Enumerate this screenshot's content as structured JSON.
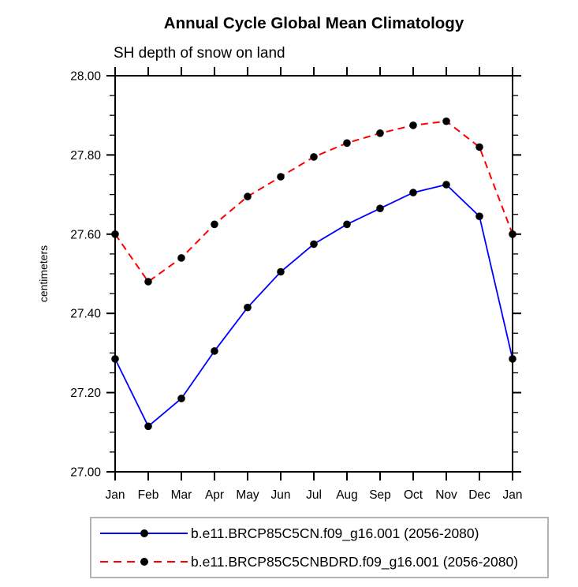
{
  "chart_data": {
    "type": "line",
    "title": "Annual Cycle Global Mean Climatology",
    "subtitle": "SH depth of snow on land",
    "ylabel": "centimeters",
    "xlabel": "",
    "categories": [
      "Jan",
      "Feb",
      "Mar",
      "Apr",
      "May",
      "Jun",
      "Jul",
      "Aug",
      "Sep",
      "Oct",
      "Nov",
      "Dec",
      "Jan"
    ],
    "ylim": [
      27.0,
      28.0
    ],
    "ytick_interval": 0.2,
    "yminor_interval": 0.05,
    "ytick_labels": [
      "27.00",
      "27.20",
      "27.40",
      "27.60",
      "27.80",
      "28.00"
    ],
    "grid": false,
    "legend_position": "bottom",
    "axis_color": "#000000",
    "series": [
      {
        "name": "b.e11.BRCP85C5CN.f09_g16.001 (2056-2080)",
        "color": "#0000ff",
        "style": "solid",
        "marker": "circle",
        "marker_color": "#000000",
        "values": [
          27.285,
          27.115,
          27.185,
          27.305,
          27.415,
          27.505,
          27.575,
          27.625,
          27.665,
          27.705,
          27.725,
          27.645,
          27.285
        ]
      },
      {
        "name": "b.e11.BRCP85C5CNBDRD.f09_g16.001 (2056-2080)",
        "color": "#ff0000",
        "style": "dashed",
        "marker": "circle",
        "marker_color": "#000000",
        "values": [
          27.6,
          27.48,
          27.54,
          27.625,
          27.695,
          27.745,
          27.795,
          27.83,
          27.855,
          27.875,
          27.885,
          27.82,
          27.6
        ]
      }
    ]
  }
}
